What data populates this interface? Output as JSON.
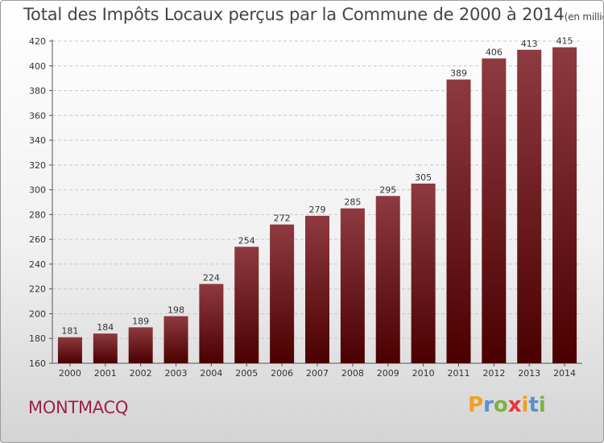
{
  "title": "Total des Impôts Locaux perçus par la Commune de 2000 à 2014",
  "unit": "(en milliers d'€)",
  "commune": "MONTMACQ",
  "logo": {
    "letters": [
      "P",
      "r",
      "o",
      "x",
      "i",
      "t",
      "i"
    ],
    "colors": [
      "#f0a020",
      "#5b8fd0",
      "#7cb342",
      "#e53935",
      "#f0a020",
      "#5b8fd0",
      "#7cb342"
    ]
  },
  "colors": {
    "bar_top": "#8e3a40",
    "bar_bottom": "#4a0000",
    "grid": "#c8c8c8",
    "axis": "#555555"
  },
  "chart_data": {
    "type": "bar",
    "title": "Total des Impôts Locaux perçus par la Commune de 2000 à 2014",
    "ylabel": "",
    "xlabel": "",
    "categories": [
      "2000",
      "2001",
      "2002",
      "2003",
      "2004",
      "2005",
      "2006",
      "2007",
      "2008",
      "2009",
      "2010",
      "2011",
      "2012",
      "2013",
      "2014"
    ],
    "values": [
      181,
      184,
      189,
      198,
      224,
      254,
      272,
      279,
      285,
      295,
      305,
      389,
      406,
      413,
      415
    ],
    "ylim": [
      160,
      420
    ],
    "yticks": [
      160,
      180,
      200,
      220,
      240,
      260,
      280,
      300,
      320,
      340,
      360,
      380,
      400,
      420
    ],
    "grid": true
  }
}
